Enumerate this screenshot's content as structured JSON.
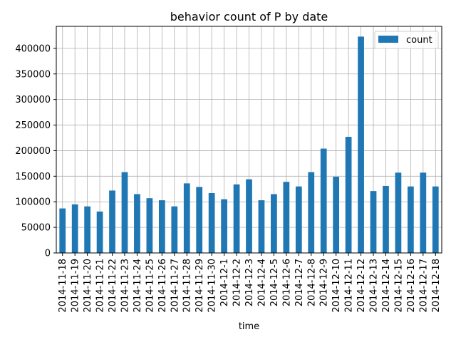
{
  "chart_data": {
    "type": "bar",
    "title": "behavior count of P by date",
    "xlabel": "time",
    "ylabel": "",
    "categories": [
      "2014-11-18",
      "2014-11-19",
      "2014-11-20",
      "2014-11-21",
      "2014-11-22",
      "2014-11-23",
      "2014-11-24",
      "2014-11-25",
      "2014-11-26",
      "2014-11-27",
      "2014-11-28",
      "2014-11-29",
      "2014-11-30",
      "2014-12-1",
      "2014-12-2",
      "2014-12-3",
      "2014-12-4",
      "2014-12-5",
      "2014-12-6",
      "2014-12-7",
      "2014-12-8",
      "2014-12-9",
      "2014-12-10",
      "2014-12-11",
      "2014-12-12",
      "2014-12-13",
      "2014-12-14",
      "2014-12-15",
      "2014-12-16",
      "2014-12-17",
      "2014-12-18"
    ],
    "series": [
      {
        "name": "count",
        "color": "#1f77b4",
        "values": [
          87000,
          95000,
          91000,
          81000,
          122000,
          158000,
          115000,
          107000,
          103000,
          91000,
          136000,
          129000,
          117000,
          105000,
          134000,
          144000,
          103000,
          115000,
          139000,
          130000,
          158000,
          204000,
          149000,
          227000,
          423000,
          121000,
          131000,
          157000,
          130000,
          157000,
          130000
        ]
      }
    ],
    "ylim": [
      0,
      443000
    ],
    "yticks": [
      0,
      50000,
      100000,
      150000,
      200000,
      250000,
      300000,
      350000,
      400000
    ],
    "grid": true,
    "legend_position": "top-right"
  }
}
